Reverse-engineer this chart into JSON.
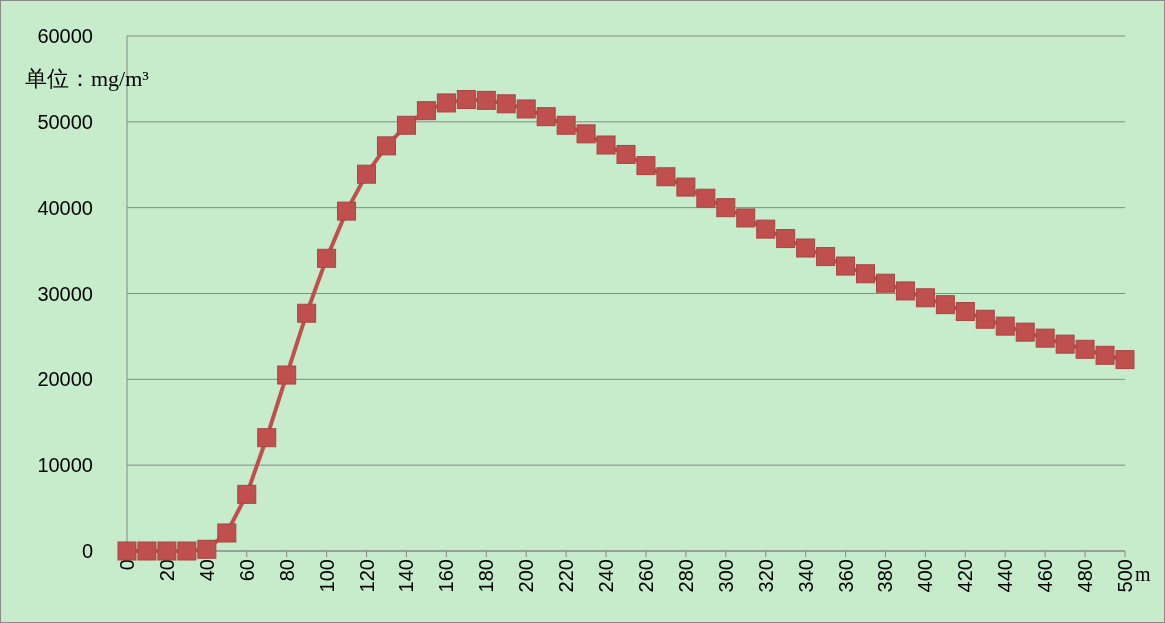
{
  "chart_data": {
    "type": "line",
    "xlabel": "m",
    "ylabel": "单位：mg/m³",
    "x": [
      0,
      10,
      20,
      30,
      40,
      50,
      60,
      70,
      80,
      90,
      100,
      110,
      120,
      130,
      140,
      150,
      160,
      170,
      180,
      190,
      200,
      210,
      220,
      230,
      240,
      250,
      260,
      270,
      280,
      290,
      300,
      310,
      320,
      330,
      340,
      350,
      360,
      370,
      380,
      390,
      400,
      410,
      420,
      430,
      440,
      450,
      460,
      470,
      480,
      490,
      500
    ],
    "series": [
      {
        "color": "#c0504d",
        "values": [
          0,
          0,
          0,
          0,
          200,
          2100,
          6600,
          13200,
          20500,
          27700,
          34100,
          39600,
          43900,
          47200,
          49600,
          51300,
          52200,
          52600,
          52500,
          52100,
          51500,
          50600,
          49600,
          48600,
          47300,
          46200,
          44900,
          43600,
          42400,
          41100,
          40000,
          38800,
          37500,
          36400,
          35300,
          34300,
          33200,
          32300,
          31200,
          30300,
          29500,
          28700,
          27900,
          27000,
          26200,
          25500,
          24800,
          24100,
          23500,
          22800,
          22300
        ]
      }
    ],
    "xlim": [
      0,
      500
    ],
    "xticks": [
      0,
      20,
      40,
      60,
      80,
      100,
      120,
      140,
      160,
      180,
      200,
      220,
      240,
      260,
      280,
      300,
      320,
      340,
      360,
      380,
      400,
      420,
      440,
      460,
      480,
      500
    ],
    "ylim": [
      0,
      60000
    ],
    "yticks": [
      0,
      10000,
      20000,
      30000,
      40000,
      50000,
      60000
    ],
    "grid": "y",
    "marker": "square",
    "line_style": "solid"
  }
}
